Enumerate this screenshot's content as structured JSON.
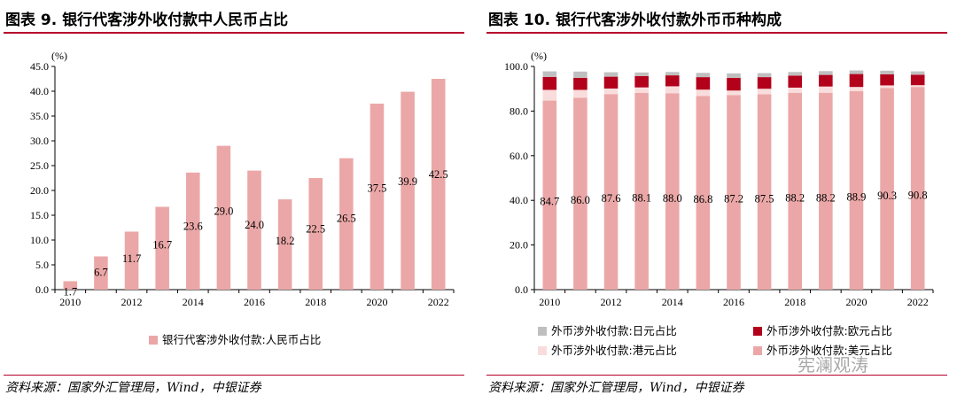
{
  "left": {
    "title": "图表 9. 银行代客涉外收付款中人民币占比",
    "source": "资料来源：国家外汇管理局，Wind，中银证券"
  },
  "right": {
    "title": "图表 10. 银行代客涉外收付款外币币种构成",
    "source": "资料来源：国家外汇管理局，Wind，中银证券"
  },
  "watermark": "宪澜观涛",
  "colors": {
    "accent": "#b7002a",
    "pink": "#eba7a7",
    "lightpink": "#f9dcdc",
    "darkred": "#b3001b",
    "gray": "#bfbfbf"
  },
  "chart_data": [
    {
      "type": "bar",
      "unit": "(%)",
      "x": [
        2010,
        2011,
        2012,
        2013,
        2014,
        2015,
        2016,
        2017,
        2018,
        2019,
        2020,
        2021,
        2022
      ],
      "x_tick_labels": [
        "2010",
        "2012",
        "2014",
        "2016",
        "2018",
        "2020",
        "2022"
      ],
      "series": [
        {
          "name": "银行代客涉外收付款:人民币占比",
          "values": [
            1.7,
            6.7,
            11.7,
            16.7,
            23.6,
            29.0,
            24.0,
            18.2,
            22.5,
            26.5,
            37.5,
            39.9,
            42.5
          ],
          "labels": [
            "1.7",
            "6.7",
            "11.7",
            "16.7",
            "23.6",
            "29.0",
            "24.0",
            "18.2",
            "22.5",
            "26.5",
            "37.5",
            "39.9",
            "42.5"
          ],
          "color": "#eba7a7"
        }
      ],
      "ylim": [
        0,
        45
      ],
      "yticks": [
        "0.0",
        "5.0",
        "10.0",
        "15.0",
        "20.0",
        "25.0",
        "30.0",
        "35.0",
        "40.0",
        "45.0"
      ],
      "legend_position": "bottom"
    },
    {
      "type": "bar",
      "stacked": true,
      "unit": "(%)",
      "x": [
        2010,
        2011,
        2012,
        2013,
        2014,
        2015,
        2016,
        2017,
        2018,
        2019,
        2020,
        2021,
        2022
      ],
      "x_tick_labels": [
        "2010",
        "2012",
        "2014",
        "2016",
        "2018",
        "2020",
        "2022"
      ],
      "series": [
        {
          "name": "外币涉外收付款:美元占比",
          "values": [
            84.7,
            86.0,
            87.6,
            88.1,
            88.0,
            86.8,
            87.2,
            87.5,
            88.2,
            88.2,
            88.9,
            90.3,
            90.8
          ],
          "labels": [
            "84.7",
            "86.0",
            "87.6",
            "88.1",
            "88.0",
            "86.8",
            "87.2",
            "87.5",
            "88.2",
            "88.2",
            "88.9",
            "90.3",
            "90.8"
          ],
          "color": "#eba7a7"
        },
        {
          "name": "外币涉外收付款:港元占比",
          "values": [
            4.8,
            3.5,
            2.5,
            2.5,
            3.1,
            2.8,
            2.0,
            2.5,
            2.3,
            2.8,
            1.9,
            1.2,
            0.8
          ],
          "color": "#f9dcdc"
        },
        {
          "name": "外币涉外收付款:欧元占比",
          "values": [
            5.8,
            5.4,
            5.3,
            5.1,
            4.9,
            5.6,
            5.7,
            5.2,
            5.4,
            5.2,
            5.8,
            5.0,
            4.7
          ],
          "color": "#b3001b"
        },
        {
          "name": "外币涉外收付款:日元占比",
          "values": [
            2.5,
            2.8,
            2.0,
            1.6,
            1.5,
            1.9,
            2.0,
            1.8,
            1.6,
            1.7,
            1.6,
            1.6,
            1.5
          ],
          "color": "#bfbfbf"
        }
      ],
      "ylim": [
        0,
        100
      ],
      "yticks": [
        "0.0",
        "20.0",
        "40.0",
        "60.0",
        "80.0",
        "100.0"
      ],
      "legend_position": "bottom"
    }
  ]
}
